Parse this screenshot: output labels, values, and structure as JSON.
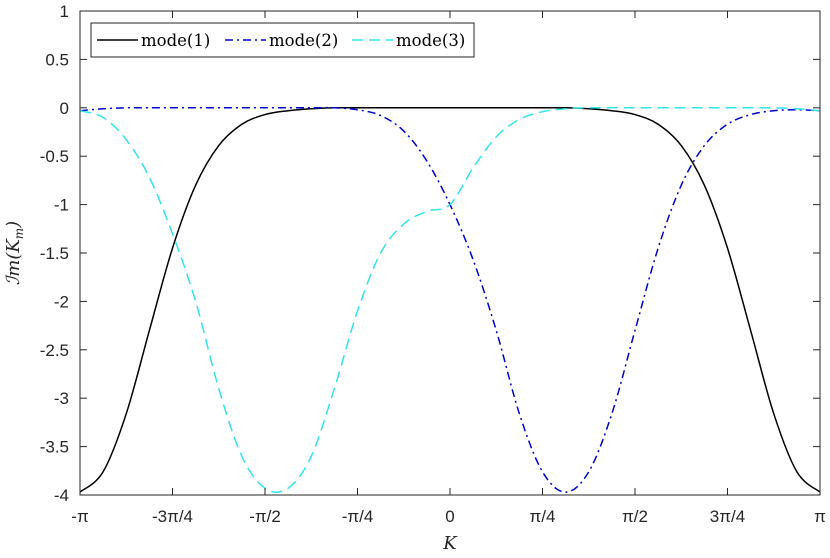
{
  "chart_data": {
    "type": "line",
    "title": "",
    "xlabel": "K",
    "ylabel": "ℐm(K_m)",
    "ylabel_parts": {
      "main": "ℐm(K",
      "sub": "m",
      "close": ")"
    },
    "xlim": [
      -3.14159,
      3.14159
    ],
    "ylim": [
      -4,
      1
    ],
    "grid": false,
    "legend_position": "top-left",
    "x_ticks": [
      {
        "value": -3.14159,
        "label": "-π"
      },
      {
        "value": -2.35619,
        "label": "-3π/4"
      },
      {
        "value": -1.5708,
        "label": "-π/2"
      },
      {
        "value": -0.7854,
        "label": "-π/4"
      },
      {
        "value": 0,
        "label": "0"
      },
      {
        "value": 0.7854,
        "label": "π/4"
      },
      {
        "value": 1.5708,
        "label": "π/2"
      },
      {
        "value": 2.35619,
        "label": "3π/4"
      },
      {
        "value": 3.14159,
        "label": "π"
      }
    ],
    "y_ticks": [
      {
        "value": 1,
        "label": "1"
      },
      {
        "value": 0.5,
        "label": "0.5"
      },
      {
        "value": 0,
        "label": "0"
      },
      {
        "value": -0.5,
        "label": "-0.5"
      },
      {
        "value": -1,
        "label": "-1"
      },
      {
        "value": -1.5,
        "label": "-1.5"
      },
      {
        "value": -2,
        "label": "-2"
      },
      {
        "value": -2.5,
        "label": "-2.5"
      },
      {
        "value": -3,
        "label": "-3"
      },
      {
        "value": -3.5,
        "label": "-3.5"
      },
      {
        "value": -4,
        "label": "-4"
      }
    ],
    "x": [
      -3.1416,
      -2.9452,
      -2.7489,
      -2.5525,
      -2.3562,
      -2.1598,
      -1.9635,
      -1.7671,
      -1.5708,
      -1.3744,
      -1.1781,
      -0.9817,
      -0.7854,
      -0.589,
      -0.3927,
      -0.1963,
      0,
      0.1963,
      0.3927,
      0.589,
      0.7854,
      0.9817,
      1.1781,
      1.3744,
      1.5708,
      1.7671,
      1.9635,
      2.1598,
      2.3562,
      2.5525,
      2.7489,
      2.9452,
      3.1416
    ],
    "series": [
      {
        "name": "mode(1)",
        "color": "#000000",
        "dash": "solid",
        "values": [
          -3.97,
          -3.76,
          -3.16,
          -2.3,
          -1.45,
          -0.8,
          -0.39,
          -0.17,
          -0.07,
          -0.03,
          -0.01,
          0,
          0,
          0,
          0,
          0,
          0,
          0,
          0,
          0,
          0,
          0,
          -0.01,
          -0.03,
          -0.07,
          -0.17,
          -0.39,
          -0.8,
          -1.45,
          -2.3,
          -3.16,
          -3.76,
          -3.97
        ]
      },
      {
        "name": "mode(2)",
        "color": "#0000cc",
        "dash": "dashdot",
        "values": [
          -0.03,
          -0.01,
          0,
          0,
          0,
          0,
          0,
          0,
          0,
          0,
          0,
          0,
          -0.02,
          -0.08,
          -0.24,
          -0.55,
          -1.0,
          -1.57,
          -2.3,
          -3.16,
          -3.76,
          -3.97,
          -3.76,
          -3.16,
          -2.3,
          -1.45,
          -0.8,
          -0.39,
          -0.17,
          -0.07,
          -0.03,
          -0.02,
          -0.03
        ]
      },
      {
        "name": "mode(3)",
        "color": "#33e6e6",
        "dash": "dashed",
        "values": [
          -0.03,
          -0.1,
          -0.33,
          -0.72,
          -1.3,
          -2.0,
          -2.9,
          -3.6,
          -3.93,
          -3.93,
          -3.6,
          -2.9,
          -2.1,
          -1.5,
          -1.2,
          -1.07,
          -1.0,
          -0.62,
          -0.3,
          -0.12,
          -0.04,
          -0.01,
          0,
          0,
          0,
          0,
          0,
          0,
          0,
          0,
          0,
          -0.01,
          -0.03
        ]
      }
    ]
  }
}
